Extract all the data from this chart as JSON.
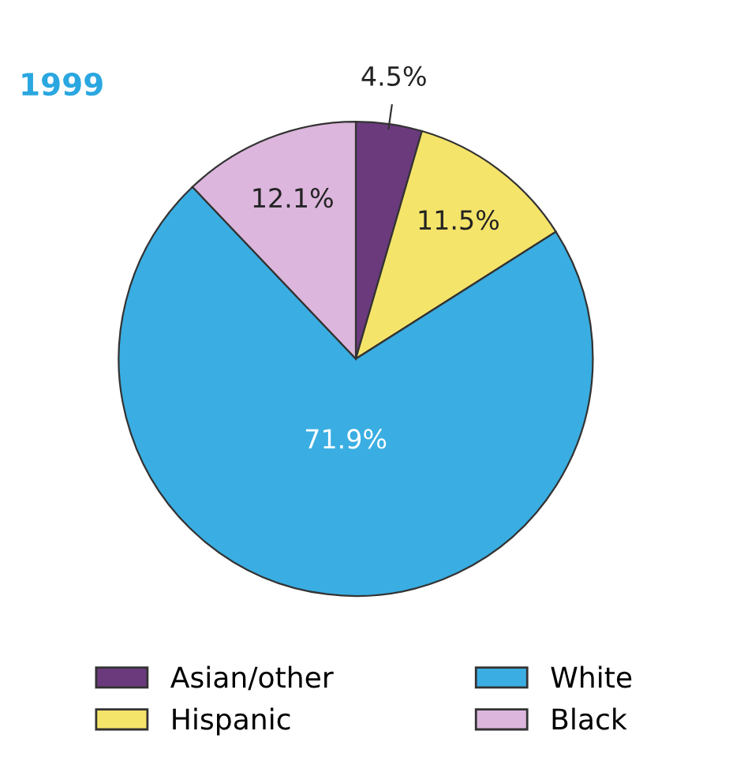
{
  "chart_data": {
    "type": "pie",
    "title": "1999",
    "categories": [
      "Asian/other",
      "Hispanic",
      "White",
      "Black"
    ],
    "values": [
      4.5,
      11.5,
      71.9,
      12.1
    ],
    "colors": [
      "#6b3a7d",
      "#f5e46a",
      "#3aaee2",
      "#dcb6dc"
    ],
    "value_labels": [
      "4.5%",
      "11.5%",
      "71.9%",
      "12.1%"
    ],
    "legend": "bottom"
  }
}
